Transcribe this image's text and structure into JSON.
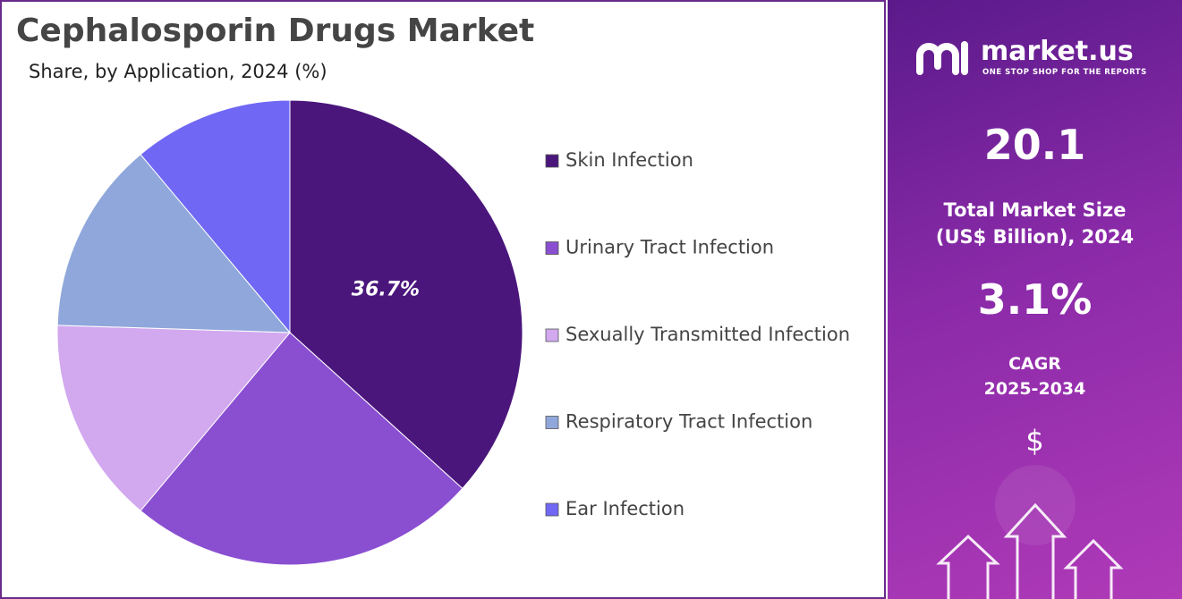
{
  "chart_data": {
    "type": "pie",
    "title": "Cephalosporin Drugs Market",
    "subtitle": "Share, by Application, 2024 (%)",
    "categories": [
      "Skin Infection",
      "Urinary Tract Infection",
      "Sexually Transmitted Infection",
      "Respiratory Tract Infection",
      "Ear Infection"
    ],
    "values": [
      36.7,
      24.4,
      14.4,
      13.4,
      11.1
    ],
    "value_labels": [
      "36.7%",
      null,
      null,
      null,
      null
    ],
    "colors": [
      "#4a167c",
      "#8a4fd1",
      "#d2a8ef",
      "#8fa7da",
      "#7068f4"
    ]
  },
  "sidebar": {
    "logo": "market.us",
    "tagline": "ONE STOP SHOP FOR THE REPORTS",
    "market_size": "20.1",
    "market_size_label": [
      "Total Market Size",
      "(US$ Billion), 2024"
    ],
    "cagr": "3.1%",
    "cagr_label": [
      "CAGR",
      "2025-2034"
    ],
    "currency": "$"
  }
}
